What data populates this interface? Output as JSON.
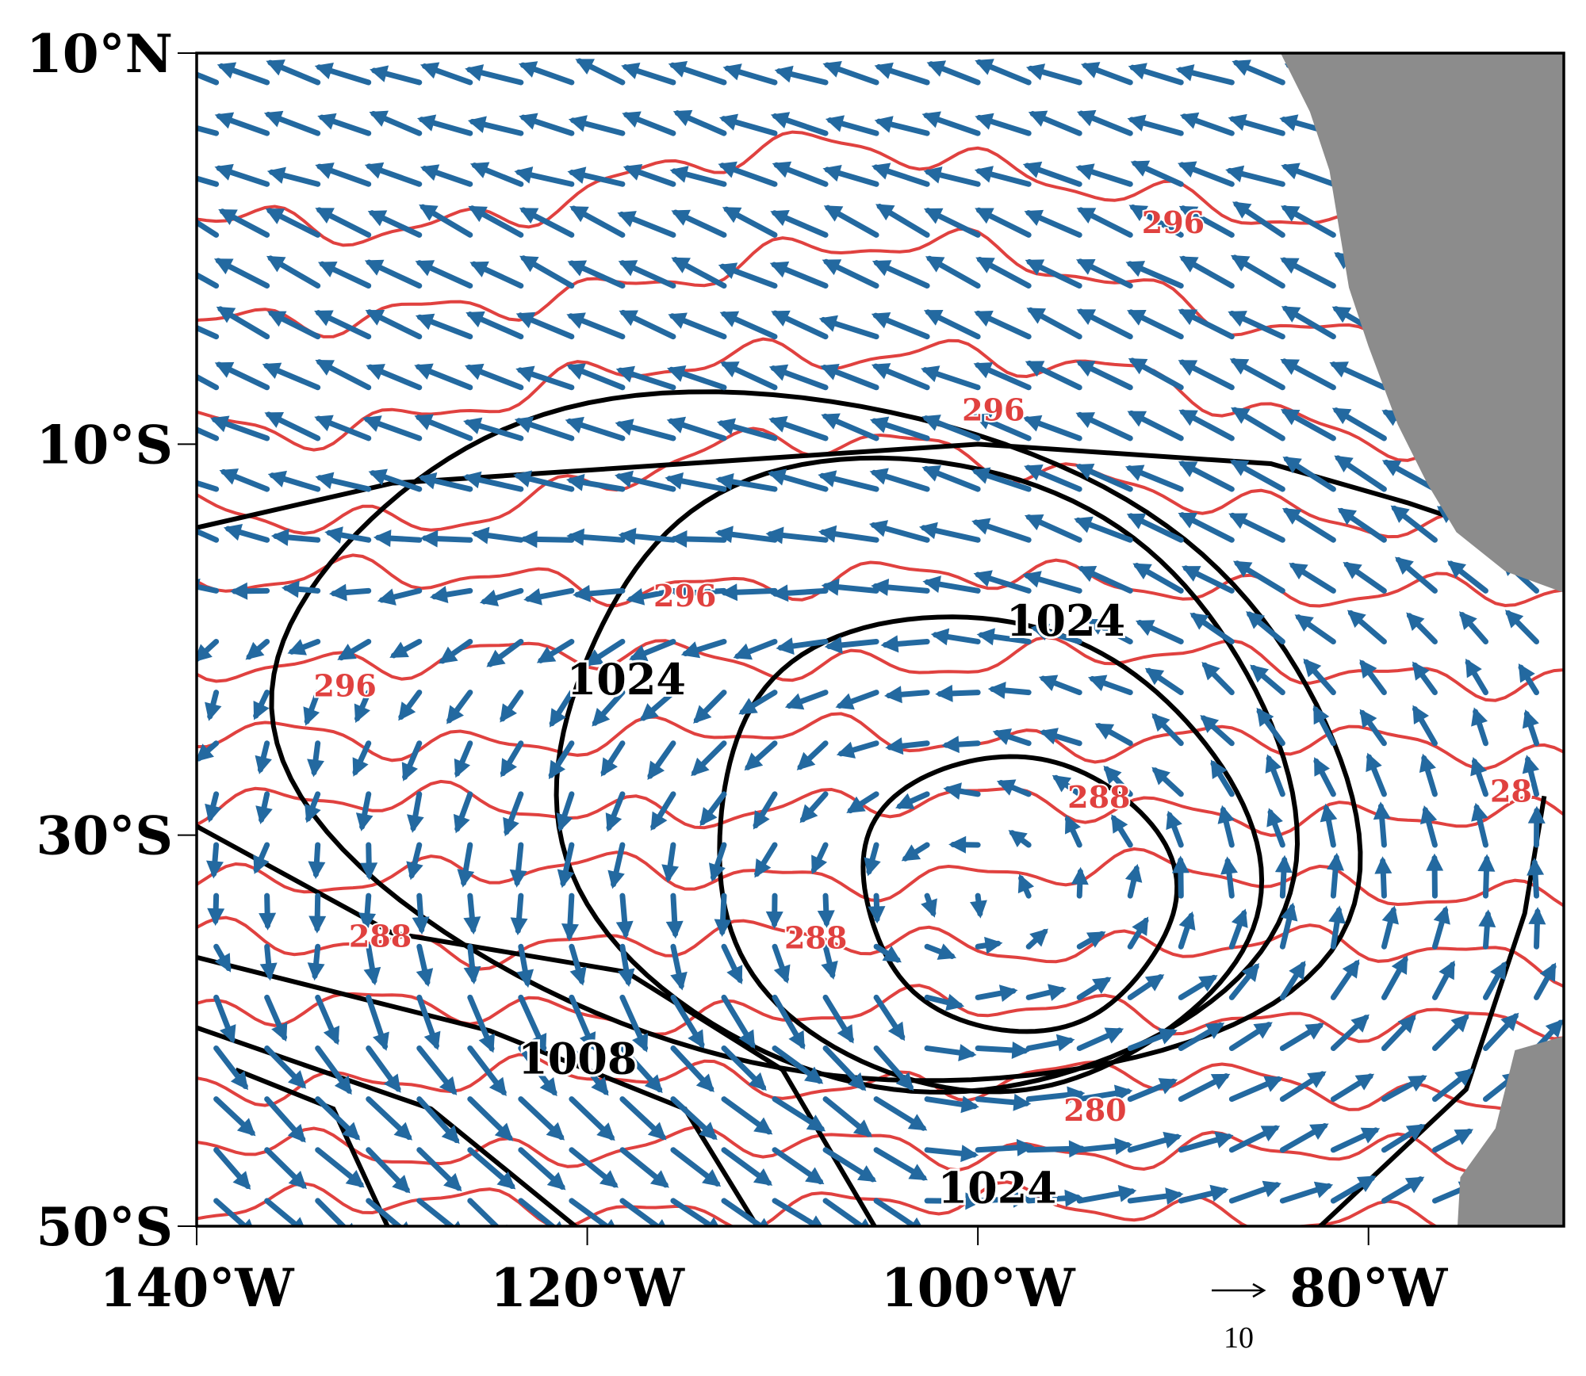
{
  "map": {
    "extent": {
      "lon_min": -140,
      "lon_max": -70,
      "lat_min": -50,
      "lat_max": 10
    },
    "x_ticks": [
      {
        "lon": -140,
        "label": "140°W"
      },
      {
        "lon": -120,
        "label": "120°W"
      },
      {
        "lon": -100,
        "label": "100°W"
      },
      {
        "lon": -80,
        "label": "80°W"
      }
    ],
    "y_ticks": [
      {
        "lat": 10,
        "label": "10°N"
      },
      {
        "lat": -10,
        "label": "10°S"
      },
      {
        "lat": -30,
        "label": "30°S"
      },
      {
        "lat": -50,
        "label": "50°S"
      }
    ],
    "pressure_contour_labels": [
      {
        "text": "1024",
        "lon": -118,
        "lat": -22.8
      },
      {
        "text": "1024",
        "lon": -95.5,
        "lat": -19.8
      },
      {
        "text": "1008",
        "lon": -120.5,
        "lat": -42.2
      },
      {
        "text": "1024",
        "lon": -99,
        "lat": -48.8
      }
    ],
    "temperature_contour_labels": [
      {
        "text": "296",
        "lon": -90,
        "lat": 0.8
      },
      {
        "text": "296",
        "lon": -99.2,
        "lat": -8.8
      },
      {
        "text": "296",
        "lon": -115,
        "lat": -18.3
      },
      {
        "text": "296",
        "lon": -132.4,
        "lat": -22.9
      },
      {
        "text": "288",
        "lon": -93.8,
        "lat": -28.6
      },
      {
        "text": "288",
        "lon": -108.3,
        "lat": -35.8
      },
      {
        "text": "288",
        "lon": -130.6,
        "lat": -35.7
      },
      {
        "text": "280",
        "lon": -94,
        "lat": -44.6
      },
      {
        "text": "28",
        "lon": -72.7,
        "lat": -28.3
      }
    ],
    "reference_vector": {
      "label": "10"
    },
    "colors": {
      "wind_vectors": "#2369a0",
      "temperature_contours": "#e0413f",
      "pressure_contours": "#000000",
      "land": "#8c8c8c"
    }
  }
}
